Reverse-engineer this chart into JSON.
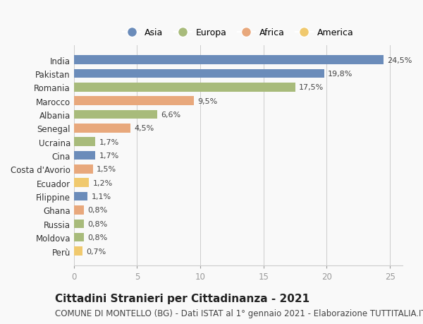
{
  "categories": [
    "India",
    "Pakistan",
    "Romania",
    "Marocco",
    "Albania",
    "Senegal",
    "Ucraina",
    "Cina",
    "Costa d'Avorio",
    "Ecuador",
    "Filippine",
    "Ghana",
    "Russia",
    "Moldova",
    "Perù"
  ],
  "values": [
    24.5,
    19.8,
    17.5,
    9.5,
    6.6,
    4.5,
    1.7,
    1.7,
    1.5,
    1.2,
    1.1,
    0.8,
    0.8,
    0.8,
    0.7
  ],
  "labels": [
    "24,5%",
    "19,8%",
    "17,5%",
    "9,5%",
    "6,6%",
    "4,5%",
    "1,7%",
    "1,7%",
    "1,5%",
    "1,2%",
    "1,1%",
    "0,8%",
    "0,8%",
    "0,8%",
    "0,7%"
  ],
  "continents": [
    "Asia",
    "Asia",
    "Europa",
    "Africa",
    "Europa",
    "Africa",
    "Europa",
    "Asia",
    "Africa",
    "America",
    "Asia",
    "Africa",
    "Europa",
    "Europa",
    "America"
  ],
  "colors": {
    "Asia": "#6b8cba",
    "Europa": "#a8bb7b",
    "Africa": "#e8a87c",
    "America": "#f0c96e"
  },
  "legend_order": [
    "Asia",
    "Europa",
    "Africa",
    "America"
  ],
  "title": "Cittadini Stranieri per Cittadinanza - 2021",
  "subtitle": "COMUNE DI MONTELLO (BG) - Dati ISTAT al 1° gennaio 2021 - Elaborazione TUTTITALIA.IT",
  "xlim": [
    0,
    26
  ],
  "xticks": [
    0,
    5,
    10,
    15,
    20,
    25
  ],
  "background_color": "#f9f9f9",
  "bar_height": 0.65,
  "title_fontsize": 11,
  "subtitle_fontsize": 8.5,
  "label_fontsize": 8,
  "tick_fontsize": 8.5,
  "legend_fontsize": 9
}
